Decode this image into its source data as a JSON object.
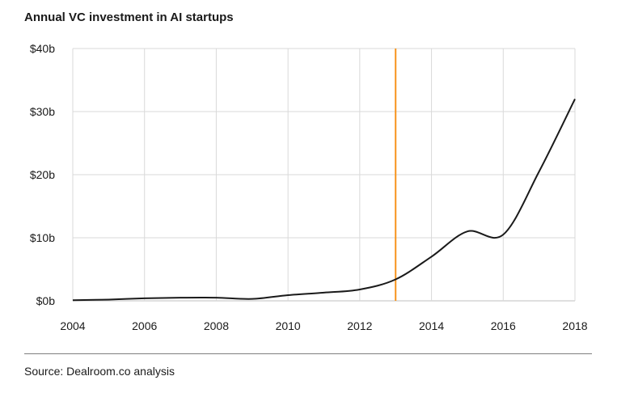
{
  "title": "Annual VC investment in AI startups",
  "source": "Source: Dealroom.co analysis",
  "colors": {
    "line": "#1a1a1a",
    "marker": "#f7941d",
    "grid": "#d9d9d9",
    "axis": "#bfbfbf"
  },
  "chart_data": {
    "type": "line",
    "title": "Annual VC investment in AI startups",
    "xlabel": "",
    "ylabel": "",
    "xlim": [
      2004,
      2018
    ],
    "ylim": [
      0,
      40
    ],
    "x_ticks": [
      2004,
      2006,
      2008,
      2010,
      2012,
      2014,
      2016,
      2018
    ],
    "x_tick_labels": [
      "2004",
      "2006",
      "2008",
      "2010",
      "2012",
      "2014",
      "2016",
      "2018"
    ],
    "y_ticks": [
      0,
      10,
      20,
      30,
      40
    ],
    "y_tick_labels": [
      "$0b",
      "$10b",
      "$20b",
      "$30b",
      "$40b"
    ],
    "grid": true,
    "vertical_marker": {
      "x": 2013,
      "color": "#f7941d"
    },
    "series": [
      {
        "x": [
          2004,
          2005,
          2006,
          2007,
          2008,
          2009,
          2010,
          2011,
          2012,
          2013,
          2014,
          2015,
          2016,
          2017,
          2018
        ],
        "values": [
          0.1,
          0.2,
          0.4,
          0.5,
          0.5,
          0.3,
          0.9,
          1.3,
          1.8,
          3.4,
          7.0,
          11.0,
          10.5,
          20.5,
          32.0
        ]
      }
    ]
  }
}
